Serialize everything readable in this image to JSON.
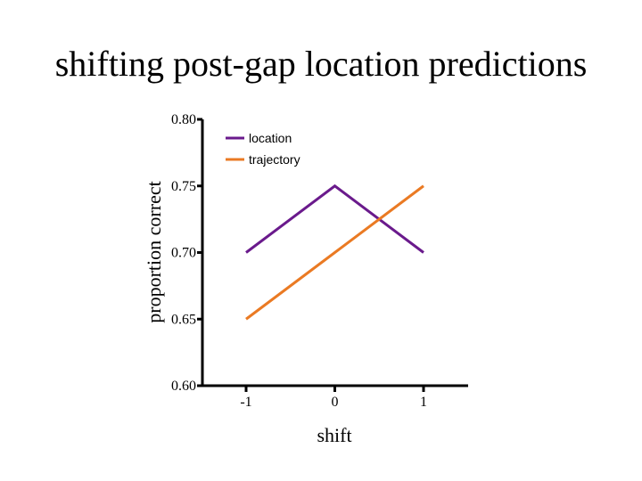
{
  "slide": {
    "title": "shifting post-gap location predictions"
  },
  "chart_data": {
    "type": "line",
    "title": "",
    "xlabel": "shift",
    "ylabel": "proportion correct",
    "x": [
      -1,
      0,
      1
    ],
    "x_tick_labels": [
      "-1",
      "0",
      "1"
    ],
    "y_tick_labels": [
      "0.60",
      "0.65",
      "0.70",
      "0.75",
      "0.80"
    ],
    "ylim": [
      0.6,
      0.8
    ],
    "grid": false,
    "legend_position": "top-left",
    "series": [
      {
        "name": "location",
        "values": [
          0.7,
          0.75,
          0.7
        ],
        "color": "#6a1a8c"
      },
      {
        "name": "trajectory",
        "values": [
          0.65,
          0.7,
          0.75
        ],
        "color": "#ea7a23"
      }
    ]
  }
}
